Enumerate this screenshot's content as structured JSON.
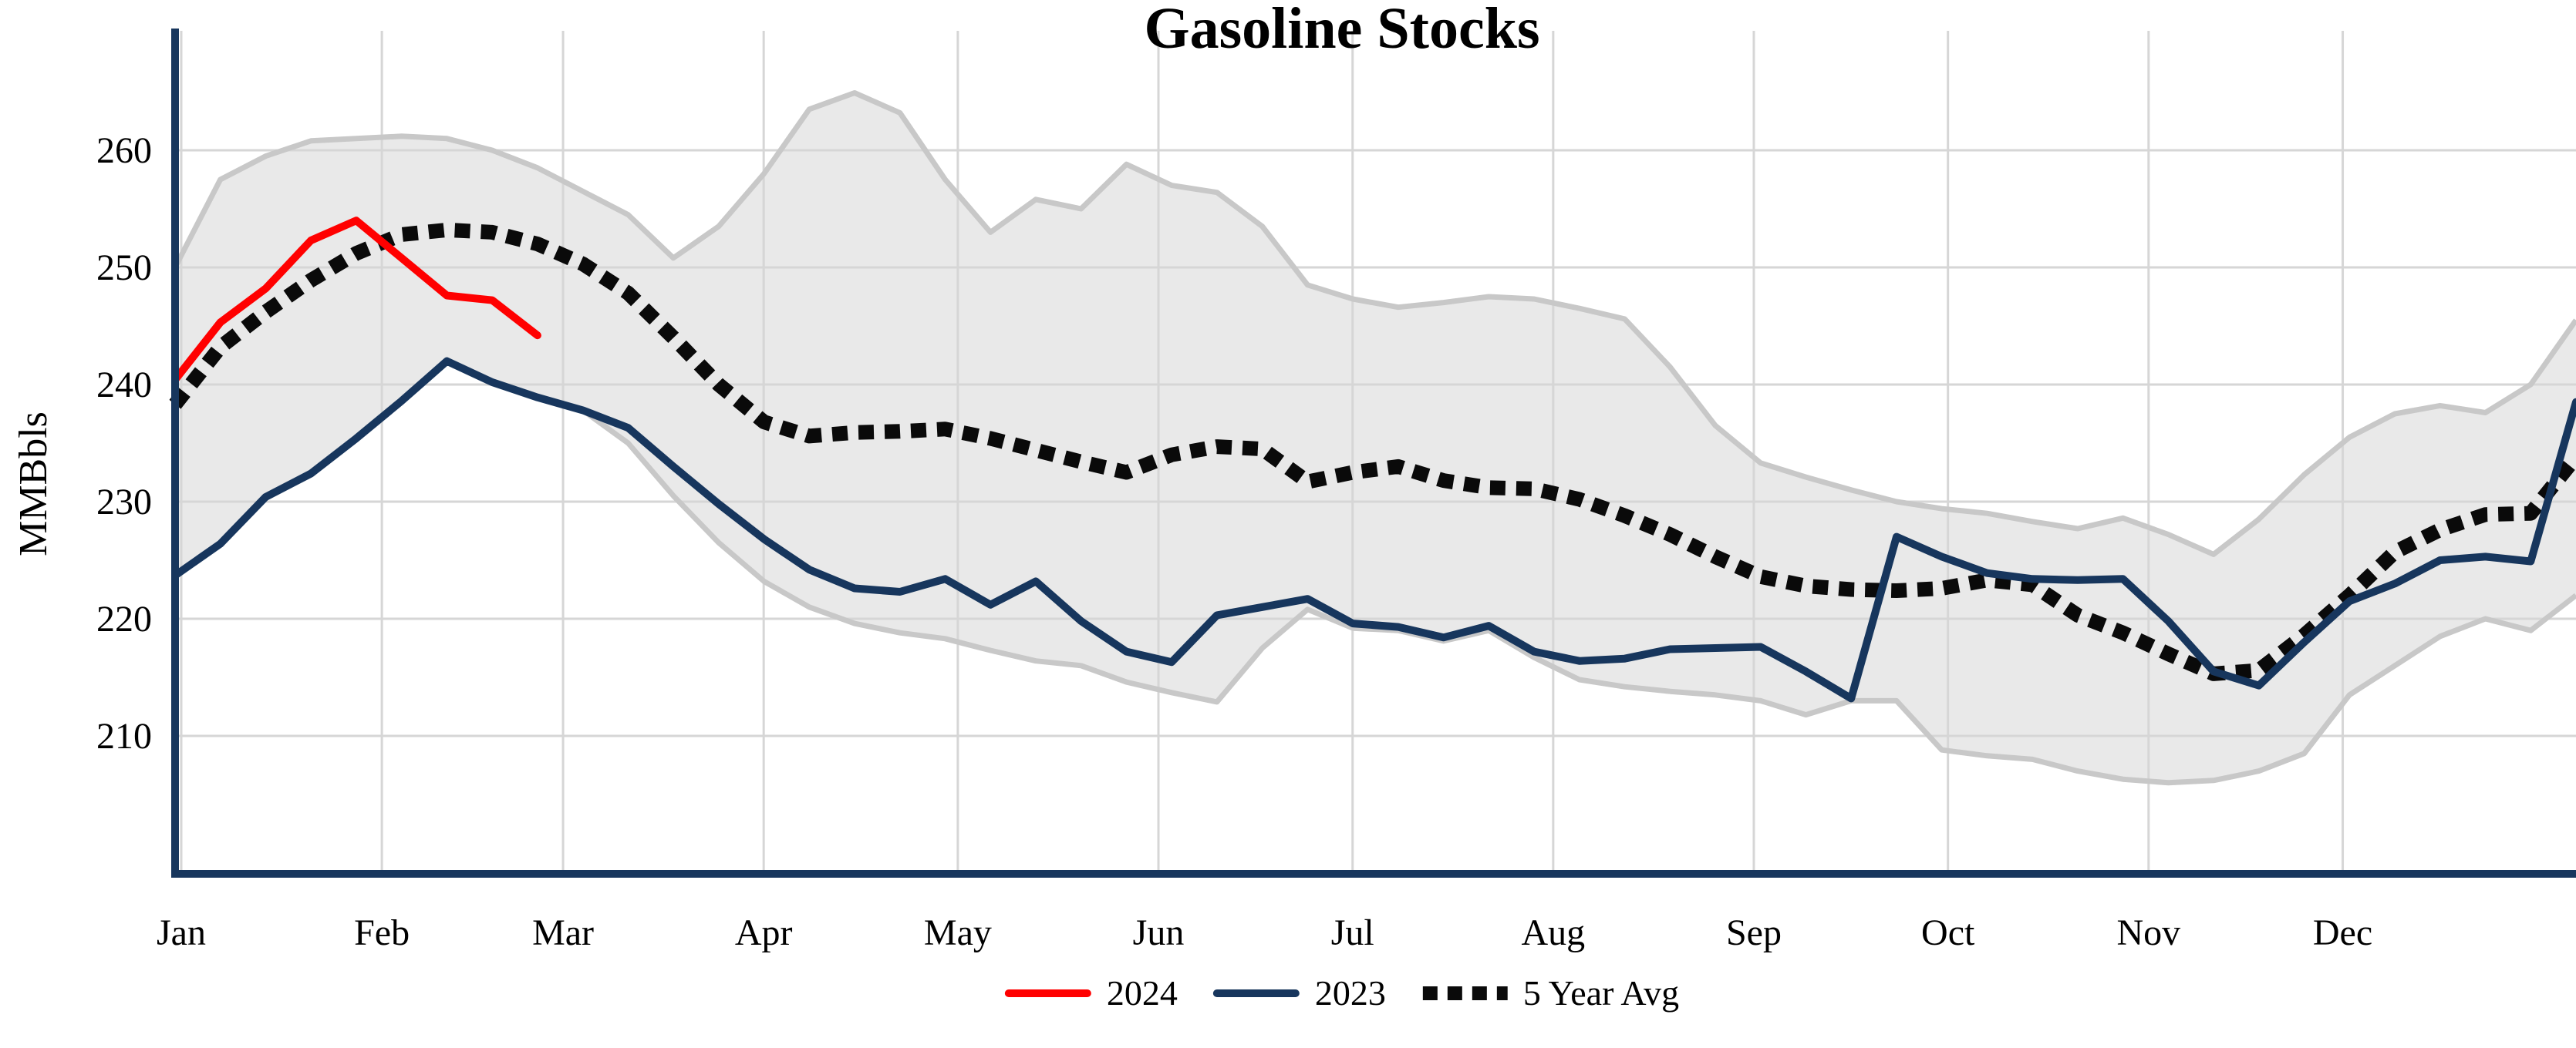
{
  "title": "Gasoline Stocks",
  "y_axis": {
    "label": "MMBbls",
    "ticks": [
      210,
      220,
      230,
      240,
      250,
      260
    ]
  },
  "x_axis": {
    "months": [
      "Jan",
      "Feb",
      "Mar",
      "Apr",
      "May",
      "Jun",
      "Jul",
      "Aug",
      "Sep",
      "Oct",
      "Nov",
      "Dec"
    ]
  },
  "legend": {
    "items": [
      {
        "label": "2024",
        "color": "#ff0000",
        "style": "solid"
      },
      {
        "label": "2023",
        "color": "#17365d",
        "style": "solid"
      },
      {
        "label": "5 Year Avg",
        "color": "#0a0a0a",
        "style": "dotted"
      }
    ]
  },
  "colors": {
    "axis": "#17365d",
    "grid": "#d6d6d6",
    "band_fill": "#e9e9e9",
    "band_edge": "#c8c8c8",
    "line_2024": "#ff0000",
    "line_2023": "#17365d",
    "line_avg": "#0a0a0a",
    "text": "#000000"
  },
  "chart_data": {
    "type": "line",
    "title": "Gasoline Stocks",
    "xlabel": "",
    "ylabel": "MMBbls",
    "x_unit": "weekly points, Jan through early Jan of next year",
    "categories": [
      "Jan",
      "Feb",
      "Mar",
      "Apr",
      "May",
      "Jun",
      "Jul",
      "Aug",
      "Sep",
      "Oct",
      "Nov",
      "Dec"
    ],
    "ylim": [
      198,
      272
    ],
    "y_ticks": [
      210,
      220,
      230,
      240,
      250,
      260
    ],
    "grid": true,
    "legend_position": "bottom",
    "series": [
      {
        "name": "2024",
        "style": "solid",
        "color": "#ff0000",
        "values": [
          240.4,
          245.3,
          248.2,
          252.3,
          254.0,
          250.8,
          247.6,
          247.2,
          244.2
        ]
      },
      {
        "name": "2023",
        "style": "solid",
        "color": "#17365d",
        "values": [
          223.7,
          226.4,
          230.4,
          232.4,
          235.4,
          238.6,
          242.0,
          240.2,
          238.9,
          237.8,
          236.3,
          233.0,
          229.8,
          226.8,
          224.2,
          222.6,
          222.3,
          223.4,
          221.2,
          223.2,
          219.8,
          217.2,
          216.3,
          220.3,
          221.0,
          221.7,
          219.6,
          219.3,
          218.4,
          219.4,
          217.2,
          216.4,
          216.6,
          217.4,
          217.5,
          217.6,
          215.5,
          213.2,
          227.0,
          225.3,
          223.9,
          223.4,
          223.3,
          223.4,
          219.8,
          215.5,
          214.3,
          218.0,
          221.5,
          223.0,
          225.0,
          225.3,
          224.9,
          238.5
        ]
      },
      {
        "name": "5 Year Avg",
        "style": "dotted",
        "color": "#0a0a0a",
        "values": [
          238.3,
          243.2,
          246.2,
          248.9,
          251.2,
          252.8,
          253.2,
          253.0,
          252.0,
          250.3,
          247.8,
          244.0,
          240.0,
          236.8,
          235.6,
          235.9,
          236.0,
          236.2,
          235.4,
          234.4,
          233.4,
          232.5,
          234.0,
          234.7,
          234.5,
          231.7,
          232.5,
          233.0,
          231.8,
          231.2,
          231.1,
          230.2,
          228.8,
          227.2,
          225.3,
          223.6,
          222.8,
          222.5,
          222.4,
          222.6,
          223.3,
          222.9,
          220.3,
          218.8,
          217.0,
          215.3,
          215.6,
          218.6,
          222.0,
          225.7,
          227.6,
          228.9,
          229.0,
          233.8
        ]
      },
      {
        "name": "5 Year Range Upper",
        "style": "band-edge",
        "color": "#c8c8c8",
        "values": [
          250.0,
          257.5,
          259.5,
          260.8,
          261.0,
          261.2,
          261.0,
          260.0,
          258.5,
          256.5,
          254.5,
          250.8,
          253.5,
          258.0,
          263.5,
          264.9,
          263.2,
          257.5,
          253.0,
          255.8,
          255.0,
          258.8,
          257.0,
          256.4,
          253.5,
          248.5,
          247.3,
          246.6,
          247.0,
          247.5,
          247.3,
          246.5,
          245.6,
          241.5,
          236.5,
          233.3,
          232.1,
          231.0,
          230.0,
          229.4,
          229.0,
          228.3,
          227.7,
          228.6,
          227.2,
          225.5,
          228.5,
          232.3,
          235.5,
          237.5,
          238.2,
          237.6,
          240.0,
          245.5
        ]
      },
      {
        "name": "5 Year Range Lower",
        "style": "band-edge",
        "color": "#c8c8c8",
        "values": [
          223.7,
          226.4,
          230.4,
          232.4,
          235.4,
          238.6,
          242.0,
          240.2,
          238.9,
          237.8,
          235.0,
          230.5,
          226.5,
          223.2,
          221.0,
          219.6,
          218.8,
          218.3,
          217.3,
          216.4,
          216.0,
          214.6,
          213.7,
          212.9,
          217.5,
          220.8,
          219.2,
          219.0,
          218.1,
          219.0,
          216.7,
          214.8,
          214.2,
          213.8,
          213.5,
          213.0,
          211.8,
          213.0,
          213.0,
          208.8,
          208.3,
          208.0,
          207.0,
          206.3,
          206.0,
          206.2,
          207.0,
          208.5,
          213.5,
          216.0,
          218.5,
          220.0,
          219.0,
          222.0
        ]
      }
    ]
  }
}
